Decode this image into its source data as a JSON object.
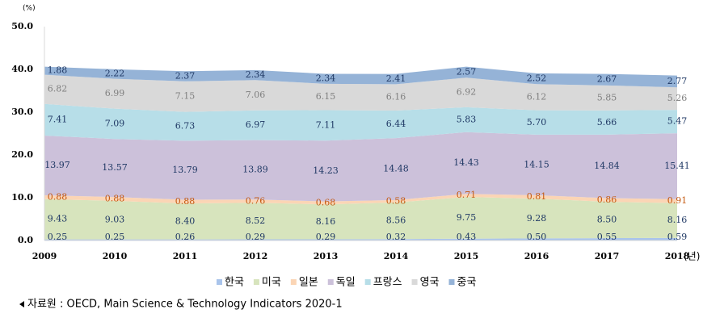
{
  "chart_data": {
    "type": "stacked-area",
    "unit_label": "(%)",
    "x_unit_label": "(년)",
    "categories": [
      "2009",
      "2010",
      "2011",
      "2012",
      "2013",
      "2014",
      "2015",
      "2016",
      "2017",
      "2018"
    ],
    "ylim": [
      0,
      50
    ],
    "yticks": [
      {
        "value": 0,
        "label": "0.0"
      },
      {
        "value": 10,
        "label": "10.0"
      },
      {
        "value": 20,
        "label": "20.0"
      },
      {
        "value": 30,
        "label": "30.0"
      },
      {
        "value": 40,
        "label": "40.0"
      },
      {
        "value": 50,
        "label": "50.0"
      }
    ],
    "series": [
      {
        "name": "한국",
        "color": "#a9c4eb",
        "label_color": "#1f3864",
        "values": [
          0.25,
          0.25,
          0.26,
          0.29,
          0.29,
          0.32,
          0.43,
          0.5,
          0.55,
          0.59
        ],
        "value_labels": [
          "0.25",
          "0.25",
          "0.26",
          "0.29",
          "0.29",
          "0.32",
          "0.43",
          "0.50",
          "0.55",
          "0.59"
        ]
      },
      {
        "name": "미국",
        "color": "#d7e4bd",
        "label_color": "#1f3864",
        "values": [
          9.43,
          9.03,
          8.4,
          8.52,
          8.16,
          8.56,
          9.75,
          9.28,
          8.5,
          8.16
        ],
        "value_labels": [
          "9.43",
          "9.03",
          "8.40",
          "8.52",
          "8.16",
          "8.56",
          "9.75",
          "9.28",
          "8.50",
          "8.16"
        ]
      },
      {
        "name": "일본",
        "color": "#fbd5b5",
        "label_color": "#c55a11",
        "values": [
          0.88,
          0.88,
          0.88,
          0.76,
          0.68,
          0.58,
          0.71,
          0.81,
          0.86,
          0.91
        ],
        "value_labels": [
          "0.88",
          "0.88",
          "0.88",
          "0.76",
          "0.68",
          "0.58",
          "0.71",
          "0.81",
          "0.86",
          "0.91"
        ]
      },
      {
        "name": "독일",
        "color": "#ccc1da",
        "label_color": "#1f3864",
        "values": [
          13.97,
          13.57,
          13.79,
          13.89,
          14.23,
          14.48,
          14.43,
          14.15,
          14.84,
          15.41
        ],
        "value_labels": [
          "13.97",
          "13.57",
          "13.79",
          "13.89",
          "14.23",
          "14.48",
          "14.43",
          "14.15",
          "14.84",
          "15.41"
        ]
      },
      {
        "name": "프랑스",
        "color": "#b7dee8",
        "label_color": "#1f3864",
        "values": [
          7.41,
          7.09,
          6.73,
          6.97,
          7.11,
          6.44,
          5.83,
          5.7,
          5.66,
          5.47
        ],
        "value_labels": [
          "7.41",
          "7.09",
          "6.73",
          "6.97",
          "7.11",
          "6.44",
          "5.83",
          "5.70",
          "5.66",
          "5.47"
        ]
      },
      {
        "name": "영국",
        "color": "#d9d9d9",
        "label_color": "#7f7f7f",
        "values": [
          6.82,
          6.99,
          7.15,
          7.06,
          6.15,
          6.16,
          6.92,
          6.12,
          5.85,
          5.26
        ],
        "value_labels": [
          "6.82",
          "6.99",
          "7.15",
          "7.06",
          "6.15",
          "6.16",
          "6.92",
          "6.12",
          "5.85",
          "5.26"
        ]
      },
      {
        "name": "중국",
        "color": "#95b3d7",
        "label_color": "#1f3864",
        "values": [
          1.88,
          2.22,
          2.37,
          2.34,
          2.34,
          2.41,
          2.57,
          2.52,
          2.67,
          2.77
        ],
        "value_labels": [
          "1.88",
          "2.22",
          "2.37",
          "2.34",
          "2.34",
          "2.41",
          "2.57",
          "2.52",
          "2.67",
          "2.77"
        ]
      }
    ],
    "source": "자료원 : OECD, Main Science & Technology Indicators 2020-1"
  }
}
